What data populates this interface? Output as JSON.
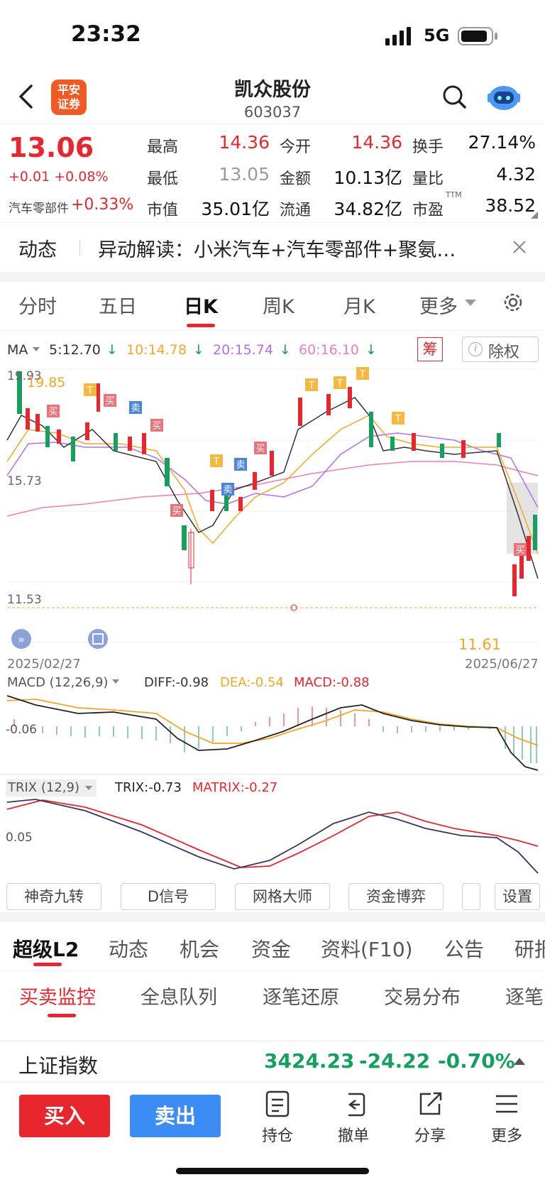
{
  "status_bar": {
    "time": "23:32",
    "network": "5G"
  },
  "header": {
    "logo_text": "平安证券",
    "stock_name": "凯众股份",
    "stock_code": "603037"
  },
  "quote": {
    "price": "13.06",
    "change": "+0.01 +0.08%",
    "sector_name": "汽车零部件",
    "sector_pct": "+0.33%",
    "rows": [
      [
        {
          "label": "最高",
          "value": "14.36",
          "color": "red"
        },
        {
          "label": "今开",
          "value": "14.36",
          "color": "red"
        },
        {
          "label": "换手",
          "value": "27.14%",
          "color": "black"
        }
      ],
      [
        {
          "label": "最低",
          "value": "13.05",
          "color": "grey"
        },
        {
          "label": "金额",
          "value": "10.13亿",
          "color": "black"
        },
        {
          "label": "量比",
          "value": "4.32",
          "color": "black"
        }
      ],
      [
        {
          "label": "市值",
          "value": "35.01亿",
          "color": "black"
        },
        {
          "label": "流通",
          "value": "34.82亿",
          "color": "black"
        },
        {
          "label": "市盈",
          "sup": "TTM",
          "value": "38.52",
          "color": "black"
        }
      ]
    ]
  },
  "news": {
    "label": "动态",
    "text": "异动解读：小米汽车+汽车零部件+聚氨…"
  },
  "period_tabs": [
    "分时",
    "五日",
    "日K",
    "周K",
    "月K",
    "更多"
  ],
  "active_period": "日K",
  "ma_legend": {
    "title": "MA",
    "items": [
      {
        "text": "5:12.70",
        "color": "#333333"
      },
      {
        "text": "10:14.78",
        "color": "#f5a623"
      },
      {
        "text": "20:15.74",
        "color": "#b36ee8"
      },
      {
        "text": "60:16.10",
        "color": "#f07cc0"
      }
    ],
    "chip_label": "筹",
    "exright_label": "除权"
  },
  "kline": {
    "price_high_label": "19.93",
    "price_high_marker": "19.85",
    "price_mid_label": "15.73",
    "price_low_label": "11.53",
    "price_low_marker": "11.61",
    "start_date": "2025/02/27",
    "end_date": "2025/06/27",
    "signal_buy": "买",
    "signal_sell": "卖",
    "signal_t": "T"
  },
  "macd": {
    "title": "MACD (12,26,9)",
    "diff": "DIFF:-0.98",
    "dea": "DEA:-0.54",
    "macd": "MACD:-0.88",
    "axis_label": "-0.06"
  },
  "trix": {
    "title": "TRIX (12,9)",
    "trix": "TRIX:-0.73",
    "matrix": "MATRIX:-0.27",
    "axis_label": "0.05"
  },
  "tools": [
    "神奇九转",
    "D信号",
    "网格大师",
    "资金博弈",
    "设置"
  ],
  "main_tabs": [
    "超级L2",
    "动态",
    "机会",
    "资金",
    "资料(F10)",
    "公告",
    "研报"
  ],
  "sub_tabs": [
    "买卖监控",
    "全息队列",
    "逐笔还原",
    "交易分布",
    "逐笔"
  ],
  "index_ticker": {
    "name": "上证指数",
    "value": "3424.23",
    "change": "-24.22",
    "pct": "-0.70%"
  },
  "actions": {
    "buy": "买入",
    "sell": "卖出",
    "items": [
      "持仓",
      "撤单",
      "分享",
      "更多"
    ]
  },
  "colors": {
    "up": "#e8262d",
    "down": "#15a05f",
    "accent": "#e8262d",
    "sell_button": "#3b8cf5"
  }
}
